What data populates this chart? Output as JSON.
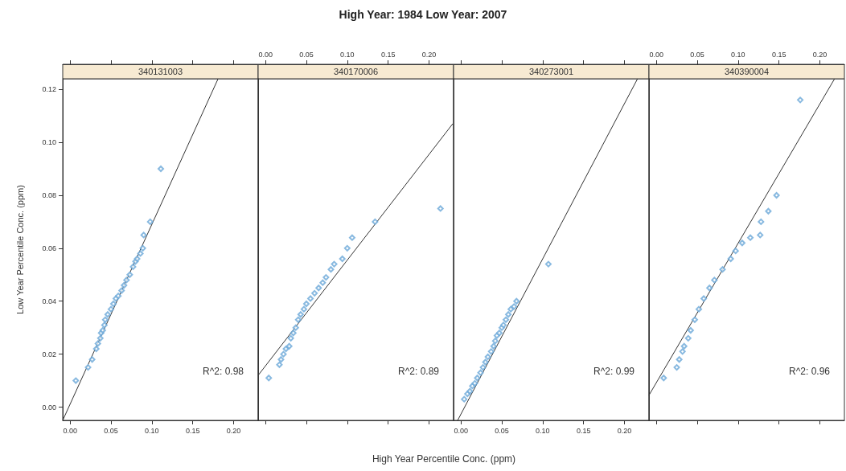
{
  "chart_data": [
    {
      "type": "scatter",
      "subtitle": "340131003",
      "ylabel": "Low Year Percentile Conc. (ppm)",
      "annotations": [
        "R^2: 0.98"
      ],
      "xlim": [
        -0.009,
        0.23
      ],
      "xticks": [
        {
          "value": 0,
          "label": "0.00"
        },
        {
          "value": 0.05,
          "label": "0.05"
        },
        {
          "value": 0.1,
          "label": "0.10"
        },
        {
          "value": 0.15,
          "label": "0.15"
        },
        {
          "value": 0.2,
          "label": "0.20"
        }
      ],
      "ylim": [
        -0.005,
        0.124
      ],
      "yticks": [
        {
          "value": 0,
          "label": "0.00"
        },
        {
          "value": 0.02,
          "label": "0.02"
        },
        {
          "value": 0.04,
          "label": "0.04"
        },
        {
          "value": 0.06,
          "label": "0.06"
        },
        {
          "value": 0.08,
          "label": "0.08"
        },
        {
          "value": 0.1,
          "label": "0.10"
        },
        {
          "value": 0.12,
          "label": "0.12"
        }
      ],
      "series": [
        {
          "marker": "diamond",
          "color": "#6aa8d8",
          "x": [
            0.007,
            0.022,
            0.027,
            0.032,
            0.034,
            0.037,
            0.038,
            0.04,
            0.042,
            0.043,
            0.046,
            0.05,
            0.053,
            0.056,
            0.059,
            0.063,
            0.066,
            0.069,
            0.073,
            0.077,
            0.08,
            0.082,
            0.086,
            0.089,
            0.09,
            0.098,
            0.111
          ],
          "values": [
            0.01,
            0.015,
            0.018,
            0.022,
            0.024,
            0.026,
            0.028,
            0.029,
            0.031,
            0.033,
            0.035,
            0.037,
            0.039,
            0.041,
            0.042,
            0.044,
            0.046,
            0.048,
            0.05,
            0.053,
            0.055,
            0.056,
            0.058,
            0.06,
            0.065,
            0.07,
            0.09
          ]
        },
        {
          "type": "line",
          "marker": "none",
          "color": "#333333",
          "x": [
            -0.009,
            0.181
          ],
          "values": [
            -0.005,
            0.124
          ]
        }
      ]
    },
    {
      "type": "scatter",
      "title": "High Year: 1984 Low Year: 2007",
      "xlabel": "High Year Percentile Conc. (ppm)",
      "subtitle": "340170006",
      "annotations": [
        "R^2: 0.89"
      ],
      "tick_labels": "x",
      "xlim": [
        -0.009,
        0.23
      ],
      "xticks": [
        {
          "value": 0,
          "label": "0.00"
        },
        {
          "value": 0.05,
          "label": "0.05"
        },
        {
          "value": 0.1,
          "label": "0.10"
        },
        {
          "value": 0.15,
          "label": "0.15"
        },
        {
          "value": 0.2,
          "label": "0.20"
        }
      ],
      "ylim": [
        -0.005,
        0.124
      ],
      "series": [
        {
          "marker": "diamond",
          "color": "#6aa8d8",
          "x": [
            0.004,
            0.017,
            0.019,
            0.022,
            0.025,
            0.029,
            0.031,
            0.034,
            0.037,
            0.04,
            0.043,
            0.047,
            0.05,
            0.055,
            0.06,
            0.065,
            0.07,
            0.074,
            0.08,
            0.084,
            0.094,
            0.1,
            0.106,
            0.134,
            0.214
          ],
          "values": [
            0.011,
            0.016,
            0.018,
            0.02,
            0.022,
            0.023,
            0.026,
            0.028,
            0.03,
            0.033,
            0.035,
            0.037,
            0.039,
            0.041,
            0.043,
            0.045,
            0.047,
            0.049,
            0.052,
            0.054,
            0.056,
            0.06,
            0.064,
            0.07,
            0.075
          ]
        },
        {
          "type": "line",
          "marker": "none",
          "color": "#333333",
          "x": [
            -0.009,
            0.229
          ],
          "values": [
            0.012,
            0.107
          ]
        }
      ]
    },
    {
      "type": "scatter",
      "subtitle": "340273001",
      "annotations": [
        "R^2: 0.99"
      ],
      "tick_labels": "x",
      "xlim": [
        -0.009,
        0.23
      ],
      "xticks": [
        {
          "value": 0,
          "label": "0.00"
        },
        {
          "value": 0.05,
          "label": "0.05"
        },
        {
          "value": 0.1,
          "label": "0.10"
        },
        {
          "value": 0.15,
          "label": "0.15"
        },
        {
          "value": 0.2,
          "label": "0.20"
        }
      ],
      "ylim": [
        -0.005,
        0.124
      ],
      "series": [
        {
          "marker": "diamond",
          "color": "#6aa8d8",
          "x": [
            0.004,
            0.008,
            0.011,
            0.014,
            0.017,
            0.02,
            0.024,
            0.027,
            0.03,
            0.033,
            0.037,
            0.04,
            0.042,
            0.044,
            0.047,
            0.05,
            0.052,
            0.055,
            0.058,
            0.061,
            0.065,
            0.068,
            0.107
          ],
          "values": [
            0.003,
            0.005,
            0.006,
            0.008,
            0.009,
            0.011,
            0.013,
            0.015,
            0.017,
            0.019,
            0.021,
            0.023,
            0.025,
            0.027,
            0.028,
            0.03,
            0.031,
            0.033,
            0.035,
            0.037,
            0.038,
            0.04,
            0.054
          ]
        },
        {
          "type": "line",
          "marker": "none",
          "color": "#333333",
          "x": [
            -0.004,
            0.216
          ],
          "values": [
            -0.005,
            0.124
          ]
        }
      ]
    },
    {
      "type": "scatter",
      "subtitle": "340390004",
      "annotations": [
        "R^2: 0.96"
      ],
      "tick_labels": "x",
      "xlim": [
        -0.009,
        0.23
      ],
      "xticks": [
        {
          "value": 0,
          "label": "0.00"
        },
        {
          "value": 0.05,
          "label": "0.05"
        },
        {
          "value": 0.1,
          "label": "0.10"
        },
        {
          "value": 0.15,
          "label": "0.15"
        },
        {
          "value": 0.2,
          "label": "0.20"
        }
      ],
      "ylim": [
        -0.005,
        0.124
      ],
      "series": [
        {
          "marker": "diamond",
          "color": "#6aa8d8",
          "x": [
            0.009,
            0.025,
            0.028,
            0.032,
            0.034,
            0.039,
            0.042,
            0.047,
            0.052,
            0.058,
            0.065,
            0.071,
            0.081,
            0.091,
            0.097,
            0.105,
            0.115,
            0.127,
            0.128,
            0.137,
            0.147,
            0.176
          ],
          "values": [
            0.011,
            0.015,
            0.018,
            0.021,
            0.023,
            0.026,
            0.029,
            0.033,
            0.037,
            0.041,
            0.045,
            0.048,
            0.052,
            0.056,
            0.059,
            0.062,
            0.064,
            0.065,
            0.07,
            0.074,
            0.08,
            0.116
          ]
        },
        {
          "type": "line",
          "marker": "none",
          "color": "#333333",
          "x": [
            -0.009,
            0.218
          ],
          "values": [
            0.0045,
            0.124
          ]
        }
      ]
    }
  ]
}
